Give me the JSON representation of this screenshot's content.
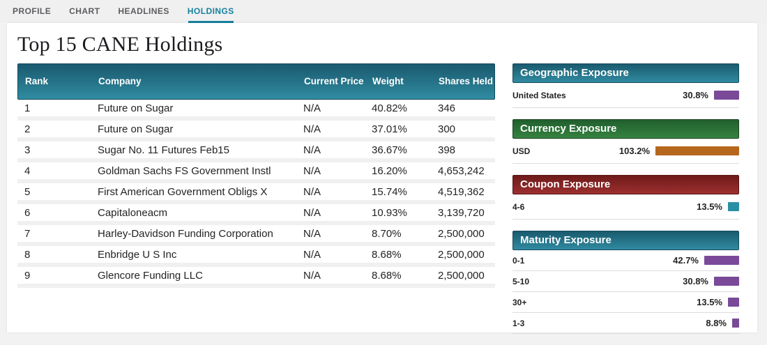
{
  "tabs": [
    {
      "label": "PROFILE",
      "active": false
    },
    {
      "label": "CHART",
      "active": false
    },
    {
      "label": "HEADLINES",
      "active": false
    },
    {
      "label": "HOLDINGS",
      "active": true
    }
  ],
  "title": "Top 15 CANE Holdings",
  "table": {
    "columns": [
      "Rank",
      "Company",
      "Current Price",
      "Weight",
      "Shares Held"
    ],
    "rows": [
      [
        "1",
        "Future on Sugar",
        "N/A",
        "40.82%",
        "346"
      ],
      [
        "2",
        "Future on Sugar",
        "N/A",
        "37.01%",
        "300"
      ],
      [
        "3",
        "Sugar No. 11 Futures Feb15",
        "N/A",
        "36.67%",
        "398"
      ],
      [
        "4",
        "Goldman Sachs FS Government Instl",
        "N/A",
        "16.20%",
        "4,653,242"
      ],
      [
        "5",
        "First American Government Obligs X",
        "N/A",
        "15.74%",
        "4,519,362"
      ],
      [
        "6",
        "Capitaloneacm",
        "N/A",
        "10.93%",
        "3,139,720"
      ],
      [
        "7",
        "Harley-Davidson Funding Corporation",
        "N/A",
        "8.70%",
        "2,500,000"
      ],
      [
        "8",
        "Enbridge U S Inc",
        "N/A",
        "8.68%",
        "2,500,000"
      ],
      [
        "9",
        "Glencore Funding LLC",
        "N/A",
        "8.68%",
        "2,500,000"
      ]
    ]
  },
  "panels": [
    {
      "title": "Geographic Exposure",
      "theme": "teal",
      "bar_color": "#7a4a99",
      "rows": [
        {
          "label": "United States",
          "value": "30.8%",
          "pct": 30.8
        }
      ]
    },
    {
      "title": "Currency Exposure",
      "theme": "green",
      "bar_color": "#b5671e",
      "rows": [
        {
          "label": "USD",
          "value": "103.2%",
          "pct": 103.2
        }
      ]
    },
    {
      "title": "Coupon Exposure",
      "theme": "red",
      "bar_color": "#2b8fa4",
      "rows": [
        {
          "label": "4-6",
          "value": "13.5%",
          "pct": 13.5
        }
      ]
    },
    {
      "title": "Maturity Exposure",
      "theme": "teal",
      "bar_color": "#7a4a99",
      "rows": [
        {
          "label": "0-1",
          "value": "42.7%",
          "pct": 42.7
        },
        {
          "label": "5-10",
          "value": "30.8%",
          "pct": 30.8
        },
        {
          "label": "30+",
          "value": "13.5%",
          "pct": 13.5
        },
        {
          "label": "1-3",
          "value": "8.8%",
          "pct": 8.8
        }
      ]
    }
  ],
  "colors": {
    "accent_teal": "#17809e",
    "header_teal_top": "#1a5a6e",
    "header_teal_bottom": "#308ba1",
    "header_green_top": "#215f2e",
    "header_green_bottom": "#35823f",
    "header_red_top": "#6f1a1a",
    "header_red_bottom": "#9c2f2f",
    "bar_purple": "#7a4a99",
    "bar_orange": "#b5671e",
    "bar_teal": "#2b8fa4"
  }
}
